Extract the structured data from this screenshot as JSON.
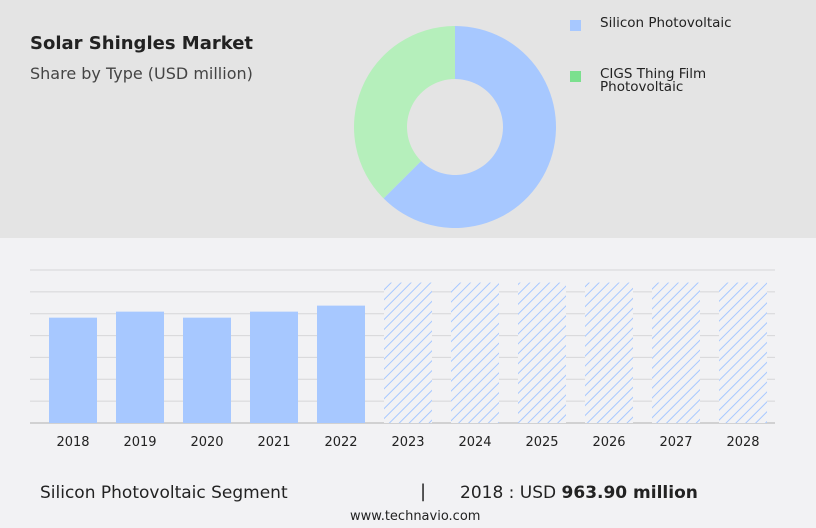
{
  "title": "Solar Shingles Market",
  "subtitle": "Share by Type (USD million)",
  "chart_data": [
    {
      "type": "pie",
      "donut": true,
      "categories": [
        "Silicon Photovoltaic",
        "CIGS Thing Film Photovoltaic"
      ],
      "values": [
        62.5,
        37.5
      ],
      "colors": [
        "#a7c8ff",
        "#b5efbb"
      ],
      "legend_colors": [
        "#a7c8ff",
        "#7be08e"
      ],
      "legend": "right"
    },
    {
      "type": "bar",
      "categories": [
        "2018",
        "2019",
        "2020",
        "2021",
        "2022",
        "2023",
        "2024",
        "2025",
        "2026",
        "2027",
        "2028"
      ],
      "values": [
        963.9,
        1019,
        963.9,
        1019,
        1074,
        null,
        null,
        null,
        null,
        null,
        null
      ],
      "forecast": [
        false,
        false,
        false,
        false,
        false,
        true,
        true,
        true,
        true,
        true,
        true
      ],
      "forecast_level": 1285,
      "ylim": [
        0,
        1400
      ],
      "grid": true,
      "color": "#a7c8ff"
    }
  ],
  "footer": {
    "segment": "Silicon Photovoltaic Segment",
    "separator": "|",
    "year_label": "2018 : USD",
    "value": "963.90 million"
  },
  "url": "www.technavio.com"
}
